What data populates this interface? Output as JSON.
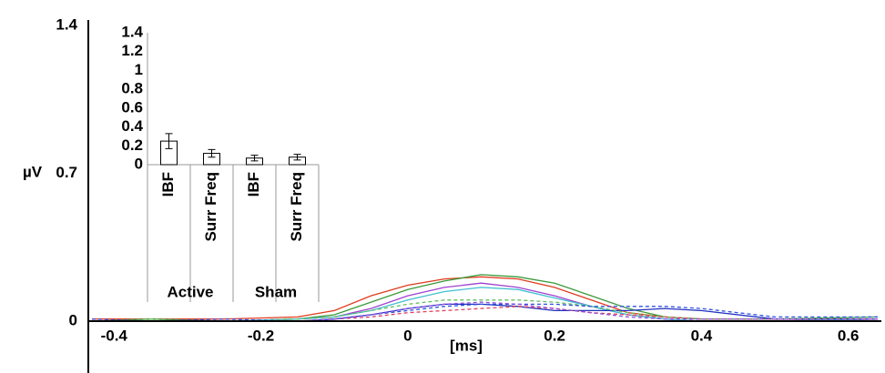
{
  "chart_data": [
    {
      "type": "line",
      "x_label": "[ms]",
      "y_label": "µV",
      "x": [
        -0.43,
        -0.35,
        -0.25,
        -0.15,
        -0.1,
        -0.05,
        0,
        0.05,
        0.1,
        0.15,
        0.2,
        0.25,
        0.3,
        0.35,
        0.4,
        0.5,
        0.64
      ],
      "series": [
        {
          "color": "#e03a1e",
          "dashed": false,
          "values": [
            0.01,
            0.01,
            0.01,
            0.02,
            0.05,
            0.12,
            0.17,
            0.2,
            0.21,
            0.2,
            0.16,
            0.1,
            0.04,
            0.02,
            0.01,
            0.01,
            0.01
          ]
        },
        {
          "color": "#3a9a3a",
          "dashed": false,
          "values": [
            0,
            0.01,
            0,
            0.01,
            0.03,
            0.09,
            0.15,
            0.19,
            0.22,
            0.21,
            0.18,
            0.12,
            0.06,
            0.02,
            0.01,
            0.01,
            0.02
          ]
        },
        {
          "color": "#a040d0",
          "dashed": false,
          "values": [
            0,
            0,
            0,
            0.01,
            0.02,
            0.06,
            0.12,
            0.16,
            0.18,
            0.16,
            0.12,
            0.07,
            0.03,
            0.01,
            0,
            0,
            0.01
          ]
        },
        {
          "color": "#40c0d0",
          "dashed": false,
          "values": [
            0,
            0,
            0,
            0.01,
            0.02,
            0.05,
            0.1,
            0.14,
            0.16,
            0.15,
            0.11,
            0.07,
            0.03,
            0.01,
            0,
            0,
            0.01
          ]
        },
        {
          "color": "#2030c0",
          "dashed": false,
          "values": [
            0,
            0,
            0,
            0,
            0.01,
            0.03,
            0.06,
            0.08,
            0.08,
            0.07,
            0.05,
            0.05,
            0.05,
            0.06,
            0.05,
            0.01,
            0.01
          ]
        },
        {
          "color": "#60c060",
          "dashed": true,
          "values": [
            0,
            0.01,
            0,
            0.01,
            0.02,
            0.05,
            0.08,
            0.1,
            0.1,
            0.1,
            0.09,
            0.07,
            0.04,
            0.02,
            0.01,
            0.01,
            0.02
          ]
        },
        {
          "color": "#3050e0",
          "dashed": true,
          "values": [
            0.01,
            0,
            0.01,
            0,
            0.01,
            0.03,
            0.05,
            0.07,
            0.08,
            0.08,
            0.08,
            0.07,
            0.07,
            0.07,
            0.06,
            0.02,
            0.02
          ]
        },
        {
          "color": "#e04060",
          "dashed": true,
          "values": [
            0,
            0,
            0,
            0,
            0.01,
            0.02,
            0.04,
            0.05,
            0.06,
            0.07,
            0.06,
            0.04,
            0.03,
            0.02,
            0.01,
            0.01,
            0.01
          ]
        },
        {
          "color": "#9050e0",
          "dashed": true,
          "values": [
            0,
            0,
            0,
            0,
            0.01,
            0.03,
            0.06,
            0.08,
            0.09,
            0.08,
            0.06,
            0.04,
            0.02,
            0.01,
            0.01,
            0.01,
            0.01
          ]
        }
      ],
      "xlim": [
        -0.435,
        0.645
      ],
      "ylim": [
        0,
        1.4
      ],
      "xticks": [
        -0.4,
        -0.2,
        0,
        0.2,
        0.4,
        0.6
      ],
      "yticks": [
        0,
        0.7,
        1.4
      ]
    },
    {
      "type": "bar",
      "categories": [
        "IBF",
        "Surr Freq",
        "IBF",
        "Surr Freq"
      ],
      "groups": [
        "Active",
        "Sham"
      ],
      "values": [
        0.25,
        0.12,
        0.07,
        0.08
      ],
      "errors": [
        0.08,
        0.04,
        0.03,
        0.03
      ],
      "color": "#ffffff",
      "ylim": [
        0,
        1.4
      ],
      "yticks": [
        0,
        0.2,
        0.4,
        0.6,
        0.8,
        1,
        1.2,
        1.4
      ]
    }
  ]
}
